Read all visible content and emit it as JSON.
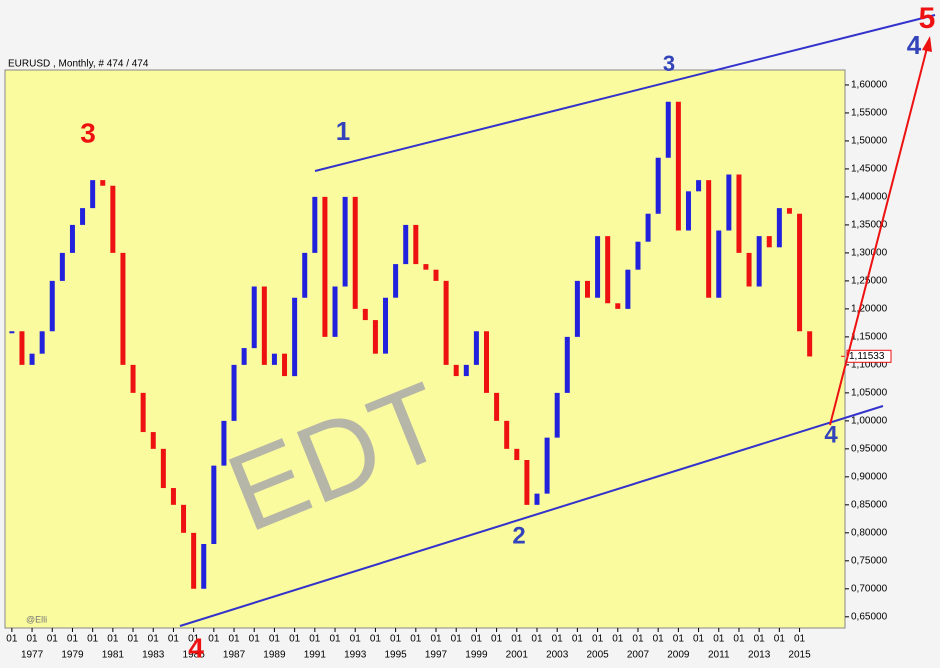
{
  "chart_data": {
    "type": "price-bars",
    "title": "EURUSD , Monthly, # 474 / 474",
    "watermark": "EDT",
    "credit": "@Elli",
    "up_color": "#2222dd",
    "down_color": "#ee1111",
    "background": "#fafa9e",
    "x": [
      1976.0,
      1976.5,
      1977.0,
      1977.5,
      1978.0,
      1978.5,
      1979.0,
      1979.5,
      1980.0,
      1980.5,
      1981.0,
      1981.5,
      1982.0,
      1982.5,
      1983.0,
      1983.5,
      1984.0,
      1984.5,
      1985.0,
      1985.5,
      1986.0,
      1986.5,
      1987.0,
      1987.5,
      1988.0,
      1988.5,
      1989.0,
      1989.5,
      1990.0,
      1990.5,
      1991.0,
      1991.5,
      1992.0,
      1992.5,
      1993.0,
      1993.5,
      1994.0,
      1994.5,
      1995.0,
      1995.5,
      1996.0,
      1996.5,
      1997.0,
      1997.5,
      1998.0,
      1998.5,
      1999.0,
      1999.5,
      2000.0,
      2000.5,
      2001.0,
      2001.5,
      2002.0,
      2002.5,
      2003.0,
      2003.5,
      2004.0,
      2004.5,
      2005.0,
      2005.5,
      2006.0,
      2006.5,
      2007.0,
      2007.5,
      2008.0,
      2008.5,
      2009.0,
      2009.5,
      2010.0,
      2010.5,
      2011.0,
      2011.5,
      2012.0,
      2012.5,
      2013.0,
      2013.5,
      2014.0,
      2014.5,
      2015.0,
      2015.5
    ],
    "values": [
      1.16,
      1.1,
      1.12,
      1.16,
      1.25,
      1.3,
      1.35,
      1.38,
      1.43,
      1.42,
      1.3,
      1.1,
      1.05,
      0.98,
      0.95,
      0.88,
      0.85,
      0.8,
      0.7,
      0.78,
      0.92,
      1.0,
      1.1,
      1.13,
      1.24,
      1.1,
      1.12,
      1.08,
      1.22,
      1.3,
      1.4,
      1.15,
      1.24,
      1.4,
      1.2,
      1.18,
      1.12,
      1.22,
      1.28,
      1.35,
      1.28,
      1.27,
      1.25,
      1.1,
      1.08,
      1.1,
      1.16,
      1.05,
      1.0,
      0.95,
      0.93,
      0.85,
      0.87,
      0.97,
      1.05,
      1.15,
      1.25,
      1.22,
      1.33,
      1.21,
      1.2,
      1.27,
      1.32,
      1.37,
      1.47,
      1.57,
      1.34,
      1.41,
      1.43,
      1.22,
      1.34,
      1.44,
      1.3,
      1.24,
      1.33,
      1.31,
      1.38,
      1.37,
      1.16,
      1.115
    ],
    "last_price": {
      "value": 1.11533,
      "label": "1,11533"
    },
    "xlim": [
      1975.66,
      2017.25
    ],
    "xticks": [
      1977,
      1979,
      1981,
      1983,
      1985,
      1987,
      1989,
      1991,
      1993,
      1995,
      1997,
      1999,
      2001,
      2003,
      2005,
      2007,
      2009,
      2011,
      2013,
      2015
    ],
    "month_ticks": [
      {
        "value": 1976,
        "label": "01"
      },
      {
        "value": 1977,
        "label": "01"
      },
      {
        "value": 1978,
        "label": "01"
      },
      {
        "value": 1979,
        "label": "01"
      },
      {
        "value": 1980,
        "label": "01"
      },
      {
        "value": 1981,
        "label": "01"
      },
      {
        "value": 1982,
        "label": "01"
      },
      {
        "value": 1983,
        "label": "01"
      },
      {
        "value": 1984,
        "label": "01"
      },
      {
        "value": 1985,
        "label": "01"
      },
      {
        "value": 1986,
        "label": "01"
      },
      {
        "value": 1987,
        "label": "01"
      },
      {
        "value": 1988,
        "label": "01"
      },
      {
        "value": 1989,
        "label": "01"
      },
      {
        "value": 1990,
        "label": "01"
      },
      {
        "value": 1991,
        "label": "01"
      },
      {
        "value": 1992,
        "label": "01"
      },
      {
        "value": 1993,
        "label": "01"
      },
      {
        "value": 1994,
        "label": "01"
      },
      {
        "value": 1995,
        "label": "01"
      },
      {
        "value": 1996,
        "label": "01"
      },
      {
        "value": 1997,
        "label": "01"
      },
      {
        "value": 1998,
        "label": "01"
      },
      {
        "value": 1999,
        "label": "01"
      },
      {
        "value": 2000,
        "label": "01"
      },
      {
        "value": 2001,
        "label": "01"
      },
      {
        "value": 2002,
        "label": "01"
      },
      {
        "value": 2003,
        "label": "01"
      },
      {
        "value": 2004,
        "label": "01"
      },
      {
        "value": 2005,
        "label": "01"
      },
      {
        "value": 2006,
        "label": "01"
      },
      {
        "value": 2007,
        "label": "01"
      },
      {
        "value": 2008,
        "label": "01"
      },
      {
        "value": 2009,
        "label": "01"
      },
      {
        "value": 2010,
        "label": "01"
      },
      {
        "value": 2011,
        "label": "01"
      },
      {
        "value": 2012,
        "label": "01"
      },
      {
        "value": 2013,
        "label": "01"
      },
      {
        "value": 2014,
        "label": "01"
      },
      {
        "value": 2015,
        "label": "01"
      }
    ],
    "ylim": [
      0.63,
      1.6267
    ],
    "yticks": [
      {
        "value": 0.65,
        "label": "0,65000"
      },
      {
        "value": 0.7,
        "label": "0,70000"
      },
      {
        "value": 0.75,
        "label": "0,75000"
      },
      {
        "value": 0.8,
        "label": "0,80000"
      },
      {
        "value": 0.85,
        "label": "0,85000"
      },
      {
        "value": 0.9,
        "label": "0,90000"
      },
      {
        "value": 0.95,
        "label": "0,95000"
      },
      {
        "value": 1.0,
        "label": "1,00000"
      },
      {
        "value": 1.05,
        "label": "1,05000"
      },
      {
        "value": 1.1,
        "label": "1,10000"
      },
      {
        "value": 1.15,
        "label": "1,15000"
      },
      {
        "value": 1.2,
        "label": "1,20000"
      },
      {
        "value": 1.25,
        "label": "1,25000"
      },
      {
        "value": 1.3,
        "label": "1,30000"
      },
      {
        "value": 1.35,
        "label": "1,35000"
      },
      {
        "value": 1.4,
        "label": "1,40000"
      },
      {
        "value": 1.45,
        "label": "1,45000"
      },
      {
        "value": 1.5,
        "label": "1,50000"
      },
      {
        "value": 1.55,
        "label": "1,55000"
      },
      {
        "value": 1.6,
        "label": "1,60000"
      }
    ],
    "wave_labels": [
      "3",
      "1",
      "3",
      "2",
      "4",
      "4",
      "5",
      "4"
    ]
  }
}
